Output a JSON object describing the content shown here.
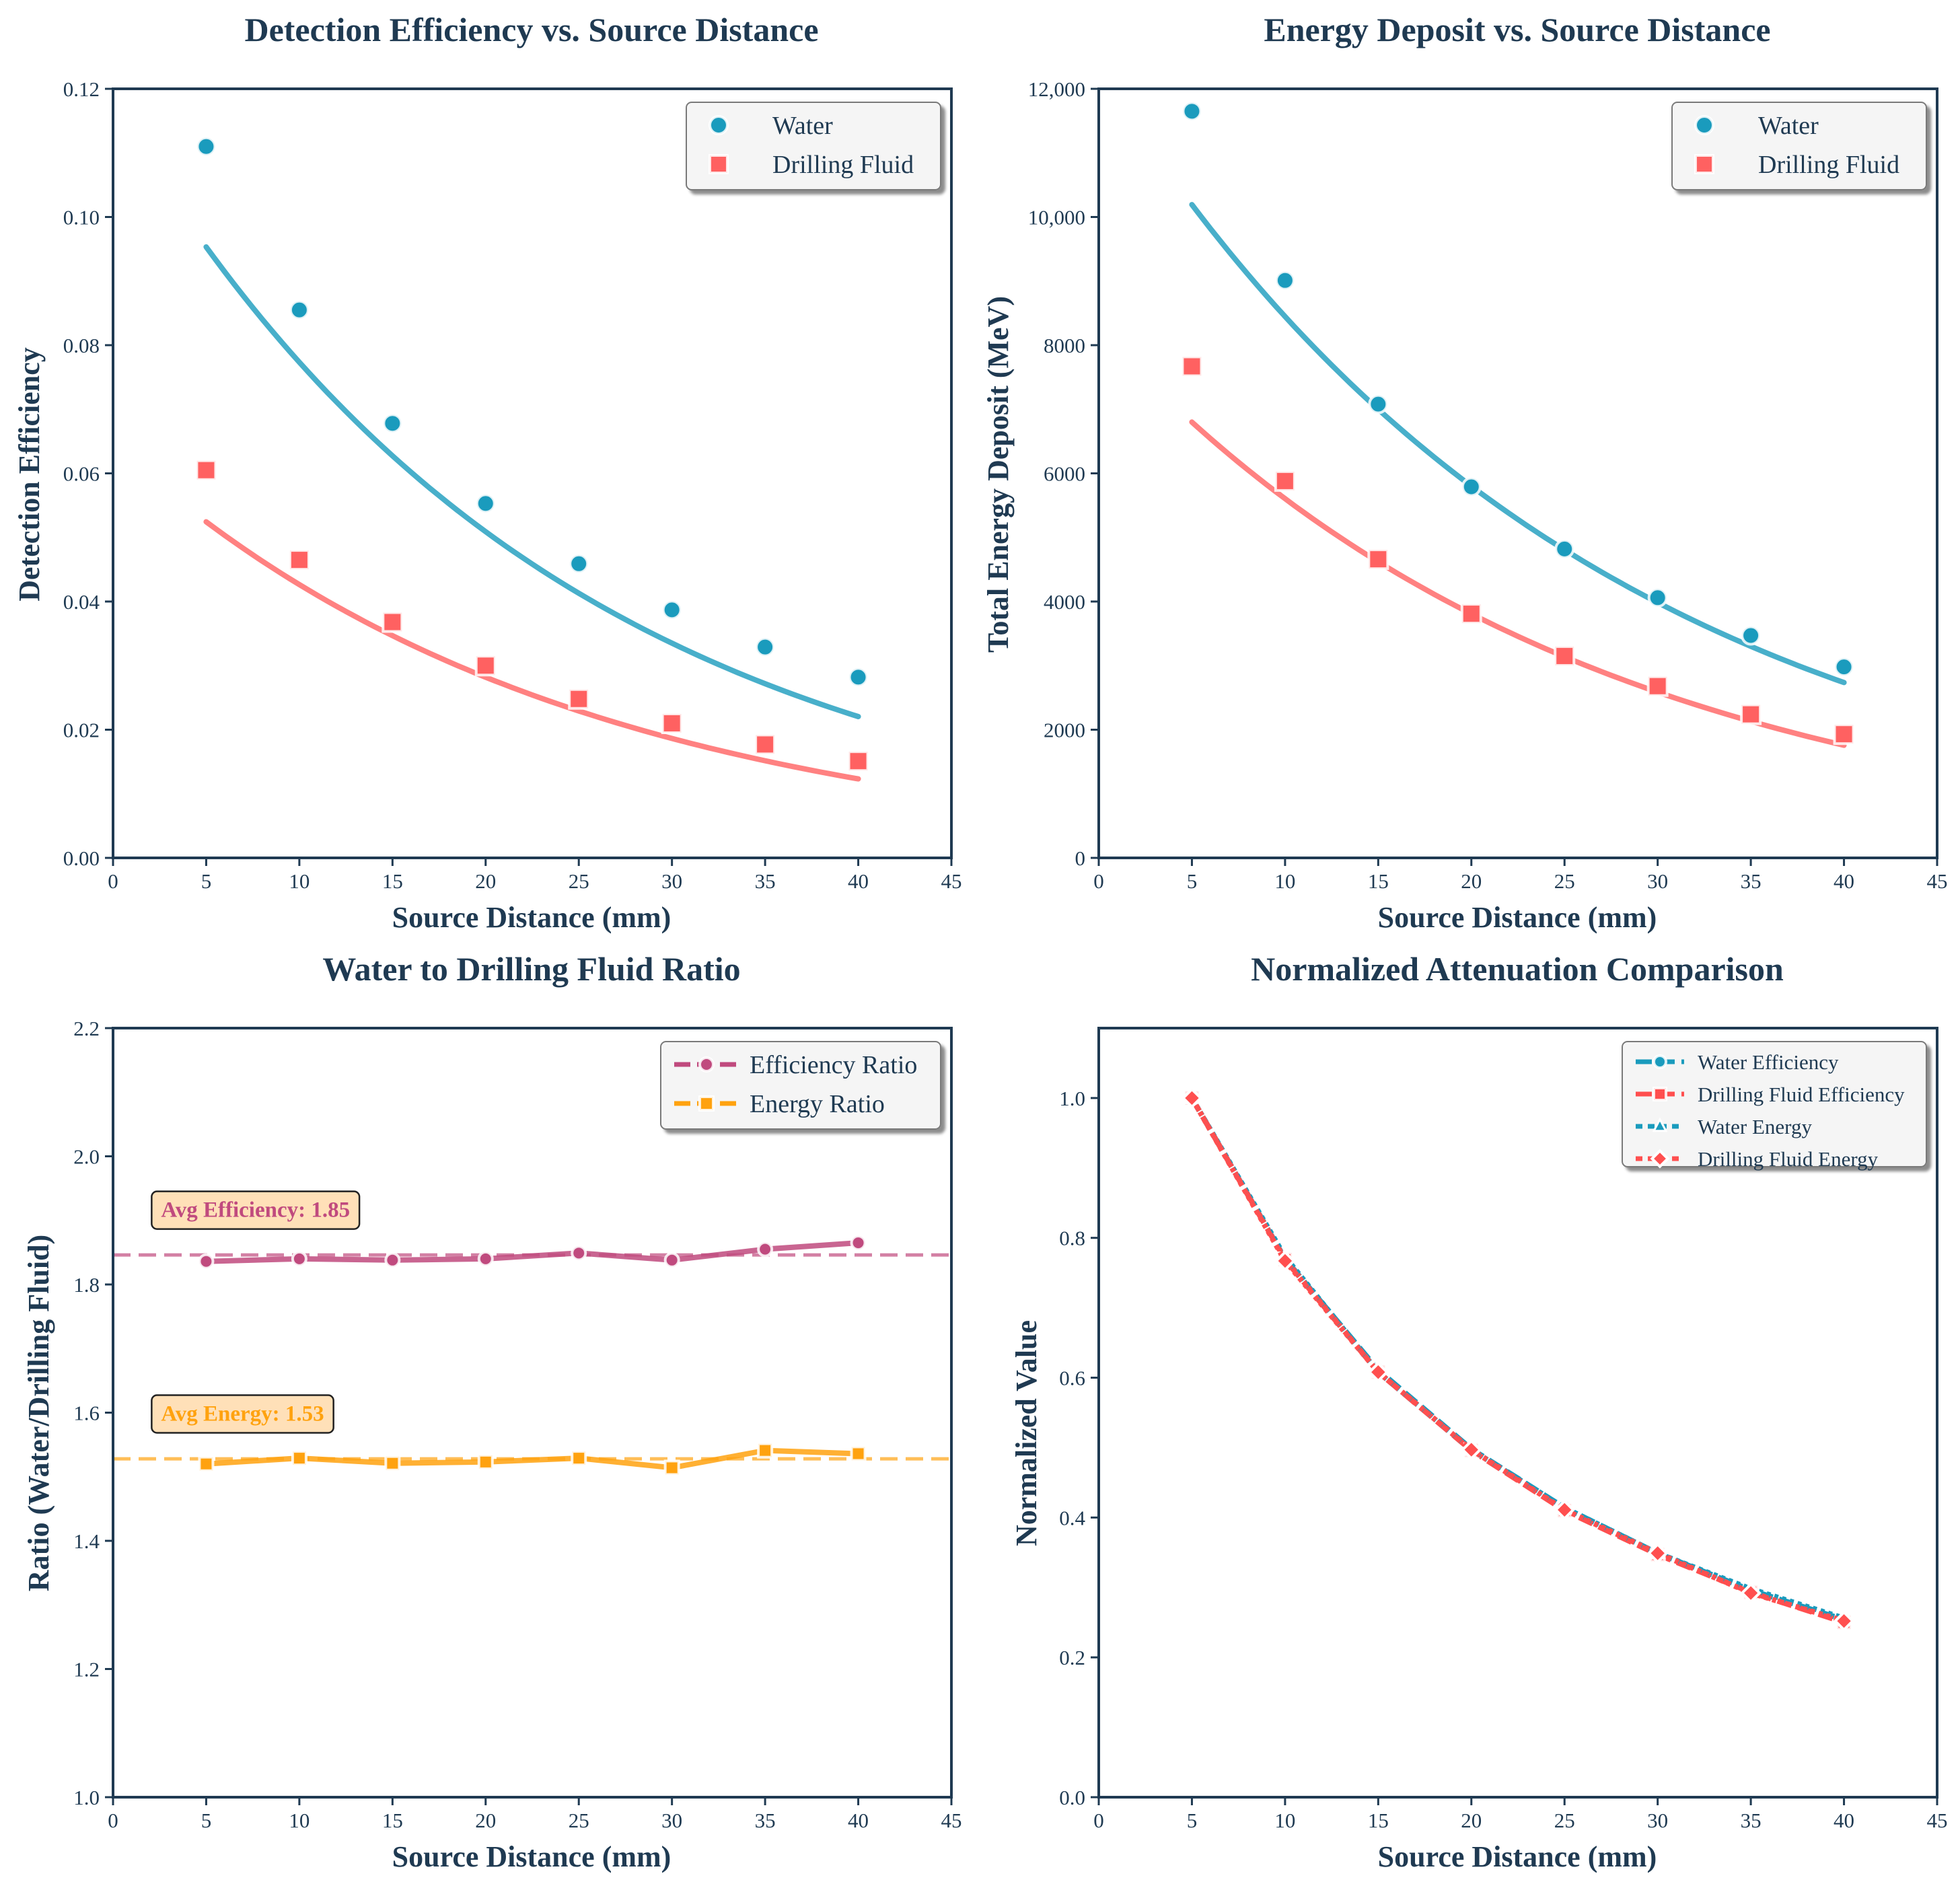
{
  "colors": {
    "water": "#1a9bbd",
    "fluid": "#ff6161",
    "eff_ratio": "#c04a7e",
    "energy_ratio": "#ffa20f",
    "axis": "#1f3a52"
  },
  "chart_data": [
    {
      "id": "p1",
      "type": "scatter",
      "title": "Detection Efficiency vs. Source Distance",
      "xlabel": "Source Distance (mm)",
      "ylabel": "Detection Efficiency",
      "xlim": [
        0,
        45
      ],
      "ylim": [
        0,
        0.12
      ],
      "xticks": [
        "0",
        "5",
        "10",
        "15",
        "20",
        "25",
        "30",
        "35",
        "40",
        "45"
      ],
      "yticks": [
        "0.00",
        "0.02",
        "0.04",
        "0.06",
        "0.08",
        "0.10",
        "0.12"
      ],
      "x": [
        5,
        10,
        15,
        20,
        25,
        30,
        35,
        40
      ],
      "series": [
        {
          "name": "Water",
          "marker": "circle",
          "color": "#1a9bbd",
          "values": [
            0.111,
            0.0855,
            0.0678,
            0.0553,
            0.0459,
            0.0387,
            0.0329,
            0.0282
          ],
          "fit": {
            "a": 0.1175,
            "k": 0.04183
          }
        },
        {
          "name": "Drilling Fluid",
          "marker": "square",
          "color": "#ff6161",
          "values": [
            0.0605,
            0.0465,
            0.0368,
            0.03,
            0.0248,
            0.021,
            0.0177,
            0.0151
          ],
          "fit": {
            "a": 0.0645,
            "k": 0.04138
          }
        }
      ],
      "legend": "top-right"
    },
    {
      "id": "p2",
      "type": "scatter",
      "title": "Energy Deposit vs. Source Distance",
      "xlabel": "Source Distance (mm)",
      "ylabel": "Total Energy Deposit (MeV)",
      "xlim": [
        0,
        45
      ],
      "ylim": [
        0,
        12000
      ],
      "xticks": [
        "0",
        "5",
        "10",
        "15",
        "20",
        "25",
        "30",
        "35",
        "40",
        "45"
      ],
      "yticks": [
        "0",
        "2000",
        "4000",
        "6000",
        "8000",
        "10,000",
        "12,000"
      ],
      "x": [
        5,
        10,
        15,
        20,
        25,
        30,
        35,
        40
      ],
      "series": [
        {
          "name": "Water",
          "marker": "circle",
          "color": "#1a9bbd",
          "values": [
            11650,
            9010,
            7080,
            5790,
            4820,
            4060,
            3470,
            2980
          ],
          "fit": {
            "a": 12300,
            "k": 0.03758
          }
        },
        {
          "name": "Drilling Fluid",
          "marker": "square",
          "color": "#ff6161",
          "values": [
            7670,
            5880,
            4660,
            3810,
            3150,
            2680,
            2240,
            1930
          ],
          "fit": {
            "a": 8250,
            "k": 0.03866
          }
        }
      ],
      "legend": "top-right"
    },
    {
      "id": "p3",
      "type": "line",
      "title": "Water to Drilling Fluid Ratio",
      "xlabel": "Source Distance (mm)",
      "ylabel": "Ratio (Water/Drilling Fluid)",
      "xlim": [
        0,
        45
      ],
      "ylim": [
        1.0,
        2.2
      ],
      "xticks": [
        "0",
        "5",
        "10",
        "15",
        "20",
        "25",
        "30",
        "35",
        "40",
        "45"
      ],
      "yticks": [
        "1.0",
        "1.2",
        "1.4",
        "1.6",
        "1.8",
        "2.0",
        "2.2"
      ],
      "x": [
        5,
        10,
        15,
        20,
        25,
        30,
        35,
        40
      ],
      "series": [
        {
          "name": "Efficiency Ratio",
          "marker": "circle",
          "color": "#c04a7e",
          "values": [
            1.836,
            1.84,
            1.838,
            1.84,
            1.849,
            1.838,
            1.855,
            1.865
          ],
          "avg": 1.846
        },
        {
          "name": "Energy Ratio",
          "marker": "square",
          "color": "#ffa20f",
          "values": [
            1.52,
            1.529,
            1.521,
            1.523,
            1.529,
            1.514,
            1.541,
            1.536
          ],
          "avg": 1.528
        }
      ],
      "annotations": [
        {
          "text": "Avg Efficiency: 1.85",
          "x": 2,
          "y": 1.918,
          "color": "#c04a7e"
        },
        {
          "text": "Avg Energy: 1.53",
          "x": 2,
          "y": 1.6,
          "color": "#ffa20f"
        }
      ],
      "legend": "top-right"
    },
    {
      "id": "p4",
      "type": "line",
      "title": "Normalized Attenuation Comparison",
      "xlabel": "Source Distance (mm)",
      "ylabel": "Normalized Value",
      "xlim": [
        0,
        45
      ],
      "ylim": [
        0,
        1.1
      ],
      "xticks": [
        "0",
        "5",
        "10",
        "15",
        "20",
        "25",
        "30",
        "35",
        "40",
        "45"
      ],
      "yticks": [
        "0.0",
        "0.2",
        "0.4",
        "0.6",
        "0.8",
        "1.0"
      ],
      "x": [
        5,
        10,
        15,
        20,
        25,
        30,
        35,
        40
      ],
      "series": [
        {
          "name": "Water Efficiency",
          "marker": "circle",
          "color": "#1a9bbd",
          "dash": "dashed",
          "values": [
            1.0,
            0.77,
            0.611,
            0.498,
            0.414,
            0.349,
            0.296,
            0.254
          ]
        },
        {
          "name": "Drilling Fluid Efficiency",
          "marker": "square",
          "color": "#ff4f4f",
          "dash": "dashed",
          "values": [
            1.0,
            0.769,
            0.608,
            0.496,
            0.41,
            0.347,
            0.293,
            0.25
          ]
        },
        {
          "name": "Water Energy",
          "marker": "triangle",
          "color": "#1a9bbd",
          "dash": "dotted",
          "values": [
            1.0,
            0.773,
            0.608,
            0.497,
            0.414,
            0.349,
            0.298,
            0.256
          ]
        },
        {
          "name": "Drilling Fluid Energy",
          "marker": "diamond",
          "color": "#ff4f4f",
          "dash": "dotted",
          "values": [
            1.0,
            0.767,
            0.608,
            0.497,
            0.411,
            0.349,
            0.292,
            0.252
          ]
        }
      ],
      "legend": "top-right"
    }
  ]
}
